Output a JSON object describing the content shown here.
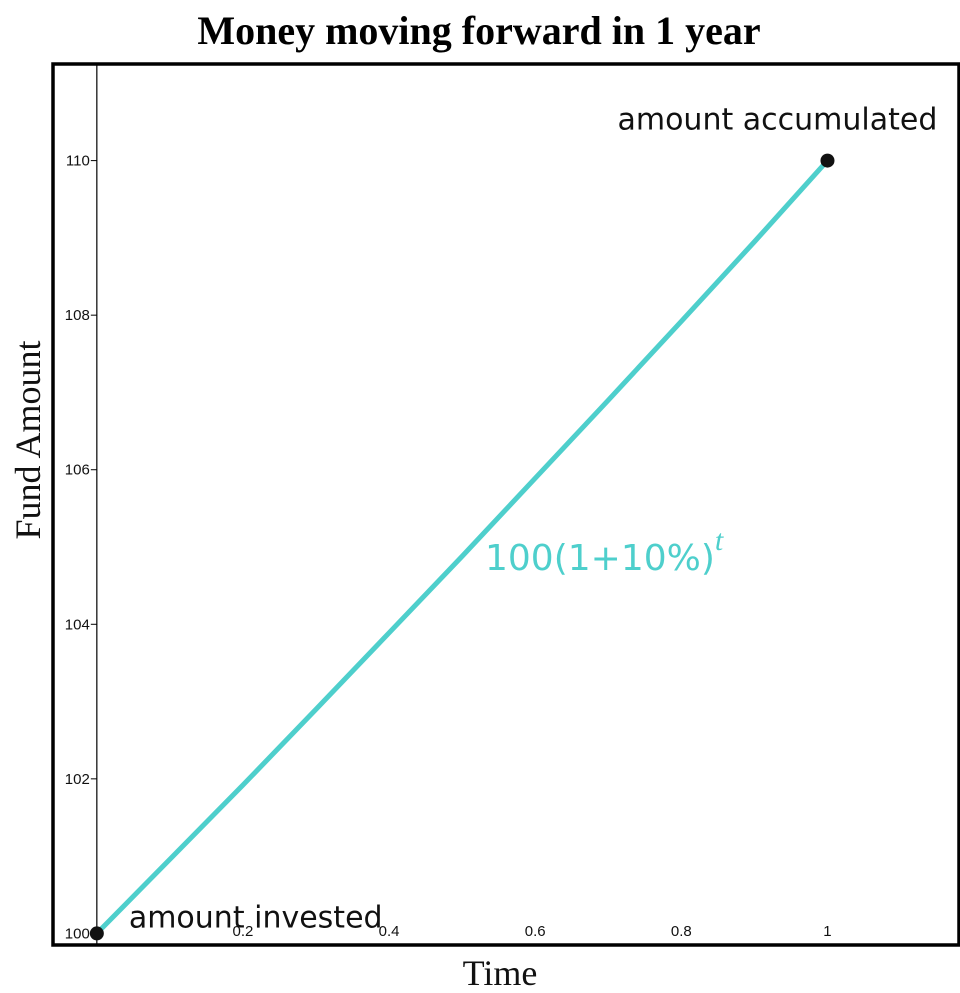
{
  "chart_data": {
    "type": "line",
    "title": "Money moving forward in 1 year",
    "xlabel": "Time",
    "ylabel": "Fund Amount",
    "xlim": [
      -0.06,
      1.18
    ],
    "ylim": [
      99.85,
      111.25
    ],
    "x_ticks": [
      0.2,
      0.4,
      0.6,
      0.8,
      1
    ],
    "x_tick_labels": [
      "0.2",
      "0.4",
      "0.6",
      "0.8",
      "1"
    ],
    "y_ticks": [
      100,
      102,
      104,
      106,
      108,
      110
    ],
    "y_tick_labels": [
      "100",
      "102",
      "104",
      "106",
      "108",
      "110"
    ],
    "grid": false,
    "series": [
      {
        "color": "#4ecfcc",
        "x": [
          0,
          0.1,
          0.2,
          0.3,
          0.4,
          0.5,
          0.6,
          0.7,
          0.8,
          0.9,
          1
        ],
        "y": [
          100,
          100.96,
          101.92,
          102.9,
          103.89,
          104.88,
          105.89,
          106.9,
          107.92,
          108.95,
          110
        ]
      }
    ],
    "points": [
      {
        "x": 0,
        "y": 100,
        "label": "amount invested"
      },
      {
        "x": 1,
        "y": 110,
        "label": "amount accumulated"
      }
    ],
    "formula": {
      "base": "100(1+10%)",
      "exponent": "t",
      "color": "#4ecfcc"
    }
  }
}
